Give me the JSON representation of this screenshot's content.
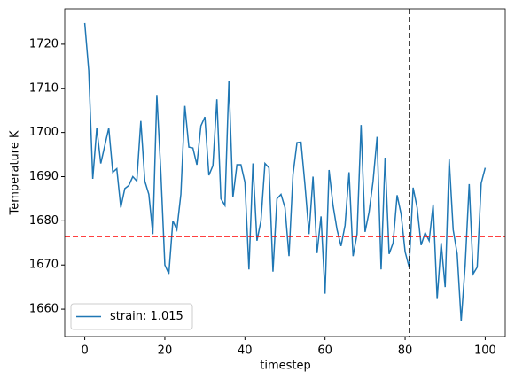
{
  "chart_data": {
    "type": "line",
    "xlabel": "timestep",
    "ylabel": "Temperature K",
    "x": [
      0,
      1,
      2,
      3,
      4,
      5,
      6,
      7,
      8,
      9,
      10,
      11,
      12,
      13,
      14,
      15,
      16,
      17,
      18,
      19,
      20,
      21,
      22,
      23,
      24,
      25,
      26,
      27,
      28,
      29,
      30,
      31,
      32,
      33,
      34,
      35,
      36,
      37,
      38,
      39,
      40,
      41,
      42,
      43,
      44,
      45,
      46,
      47,
      48,
      49,
      50,
      51,
      52,
      53,
      54,
      55,
      56,
      57,
      58,
      59,
      60,
      61,
      62,
      63,
      64,
      65,
      66,
      67,
      68,
      69,
      70,
      71,
      72,
      73,
      74,
      75,
      76,
      77,
      78,
      79,
      80,
      81,
      82,
      83,
      84,
      85,
      86,
      87,
      88,
      89,
      90,
      91,
      92,
      93,
      94,
      95,
      96,
      97,
      98,
      99,
      100
    ],
    "series": [
      {
        "name": "strain: 1.015",
        "color": "#1f77b4",
        "values": [
          1724.8,
          1714,
          1689.5,
          1701,
          1693,
          1697,
          1701,
          1691,
          1691.8,
          1683,
          1687.3,
          1688,
          1690,
          1689,
          1702.6,
          1689,
          1686,
          1677,
          1708.5,
          1691,
          1670,
          1668,
          1680,
          1678,
          1686,
          1706,
          1696.7,
          1696.5,
          1692.7,
          1701.5,
          1703.5,
          1690.3,
          1692.5,
          1707.5,
          1685,
          1683.5,
          1711.7,
          1685.3,
          1692.7,
          1692.7,
          1688.7,
          1669,
          1693,
          1675.5,
          1680,
          1693,
          1692,
          1668.5,
          1685,
          1686,
          1683,
          1672,
          1690.5,
          1697.7,
          1697.8,
          1688,
          1677,
          1690,
          1672.7,
          1681,
          1663.5,
          1691.5,
          1683.5,
          1678,
          1674.3,
          1679,
          1691,
          1672,
          1677,
          1701.7,
          1677.5,
          1682,
          1689,
          1699,
          1669,
          1694.3,
          1672.5,
          1675,
          1685.8,
          1681.5,
          1673,
          1669.5,
          1687.5,
          1683,
          1674.5,
          1677.3,
          1675.5,
          1683.7,
          1662.3,
          1675,
          1665,
          1694,
          1678,
          1672.5,
          1657.3,
          1670,
          1688.3,
          1668,
          1669.5,
          1688.5,
          1692
        ]
      }
    ],
    "reference_lines": [
      {
        "axis": "y",
        "value": 1676.45,
        "color": "#ff0000"
      },
      {
        "axis": "x",
        "value": 81.1,
        "color": "#000000"
      }
    ],
    "xlim": [
      -5,
      105
    ],
    "ylim": [
      1653.8,
      1728.0
    ],
    "xticks": [
      0,
      20,
      40,
      60,
      80,
      100
    ],
    "yticks": [
      1660,
      1670,
      1680,
      1690,
      1700,
      1710,
      1720
    ],
    "legend": "lower left"
  }
}
